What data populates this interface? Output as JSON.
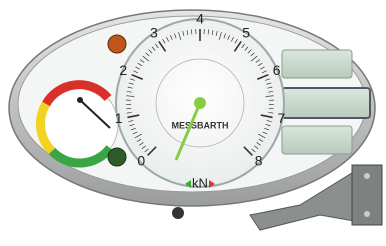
{
  "dial": {
    "labels": [
      "0",
      "1",
      "2",
      "3",
      "4",
      "5",
      "6",
      "7",
      "8"
    ],
    "unit": "kN",
    "brand": "MESSBARTH"
  }
}
